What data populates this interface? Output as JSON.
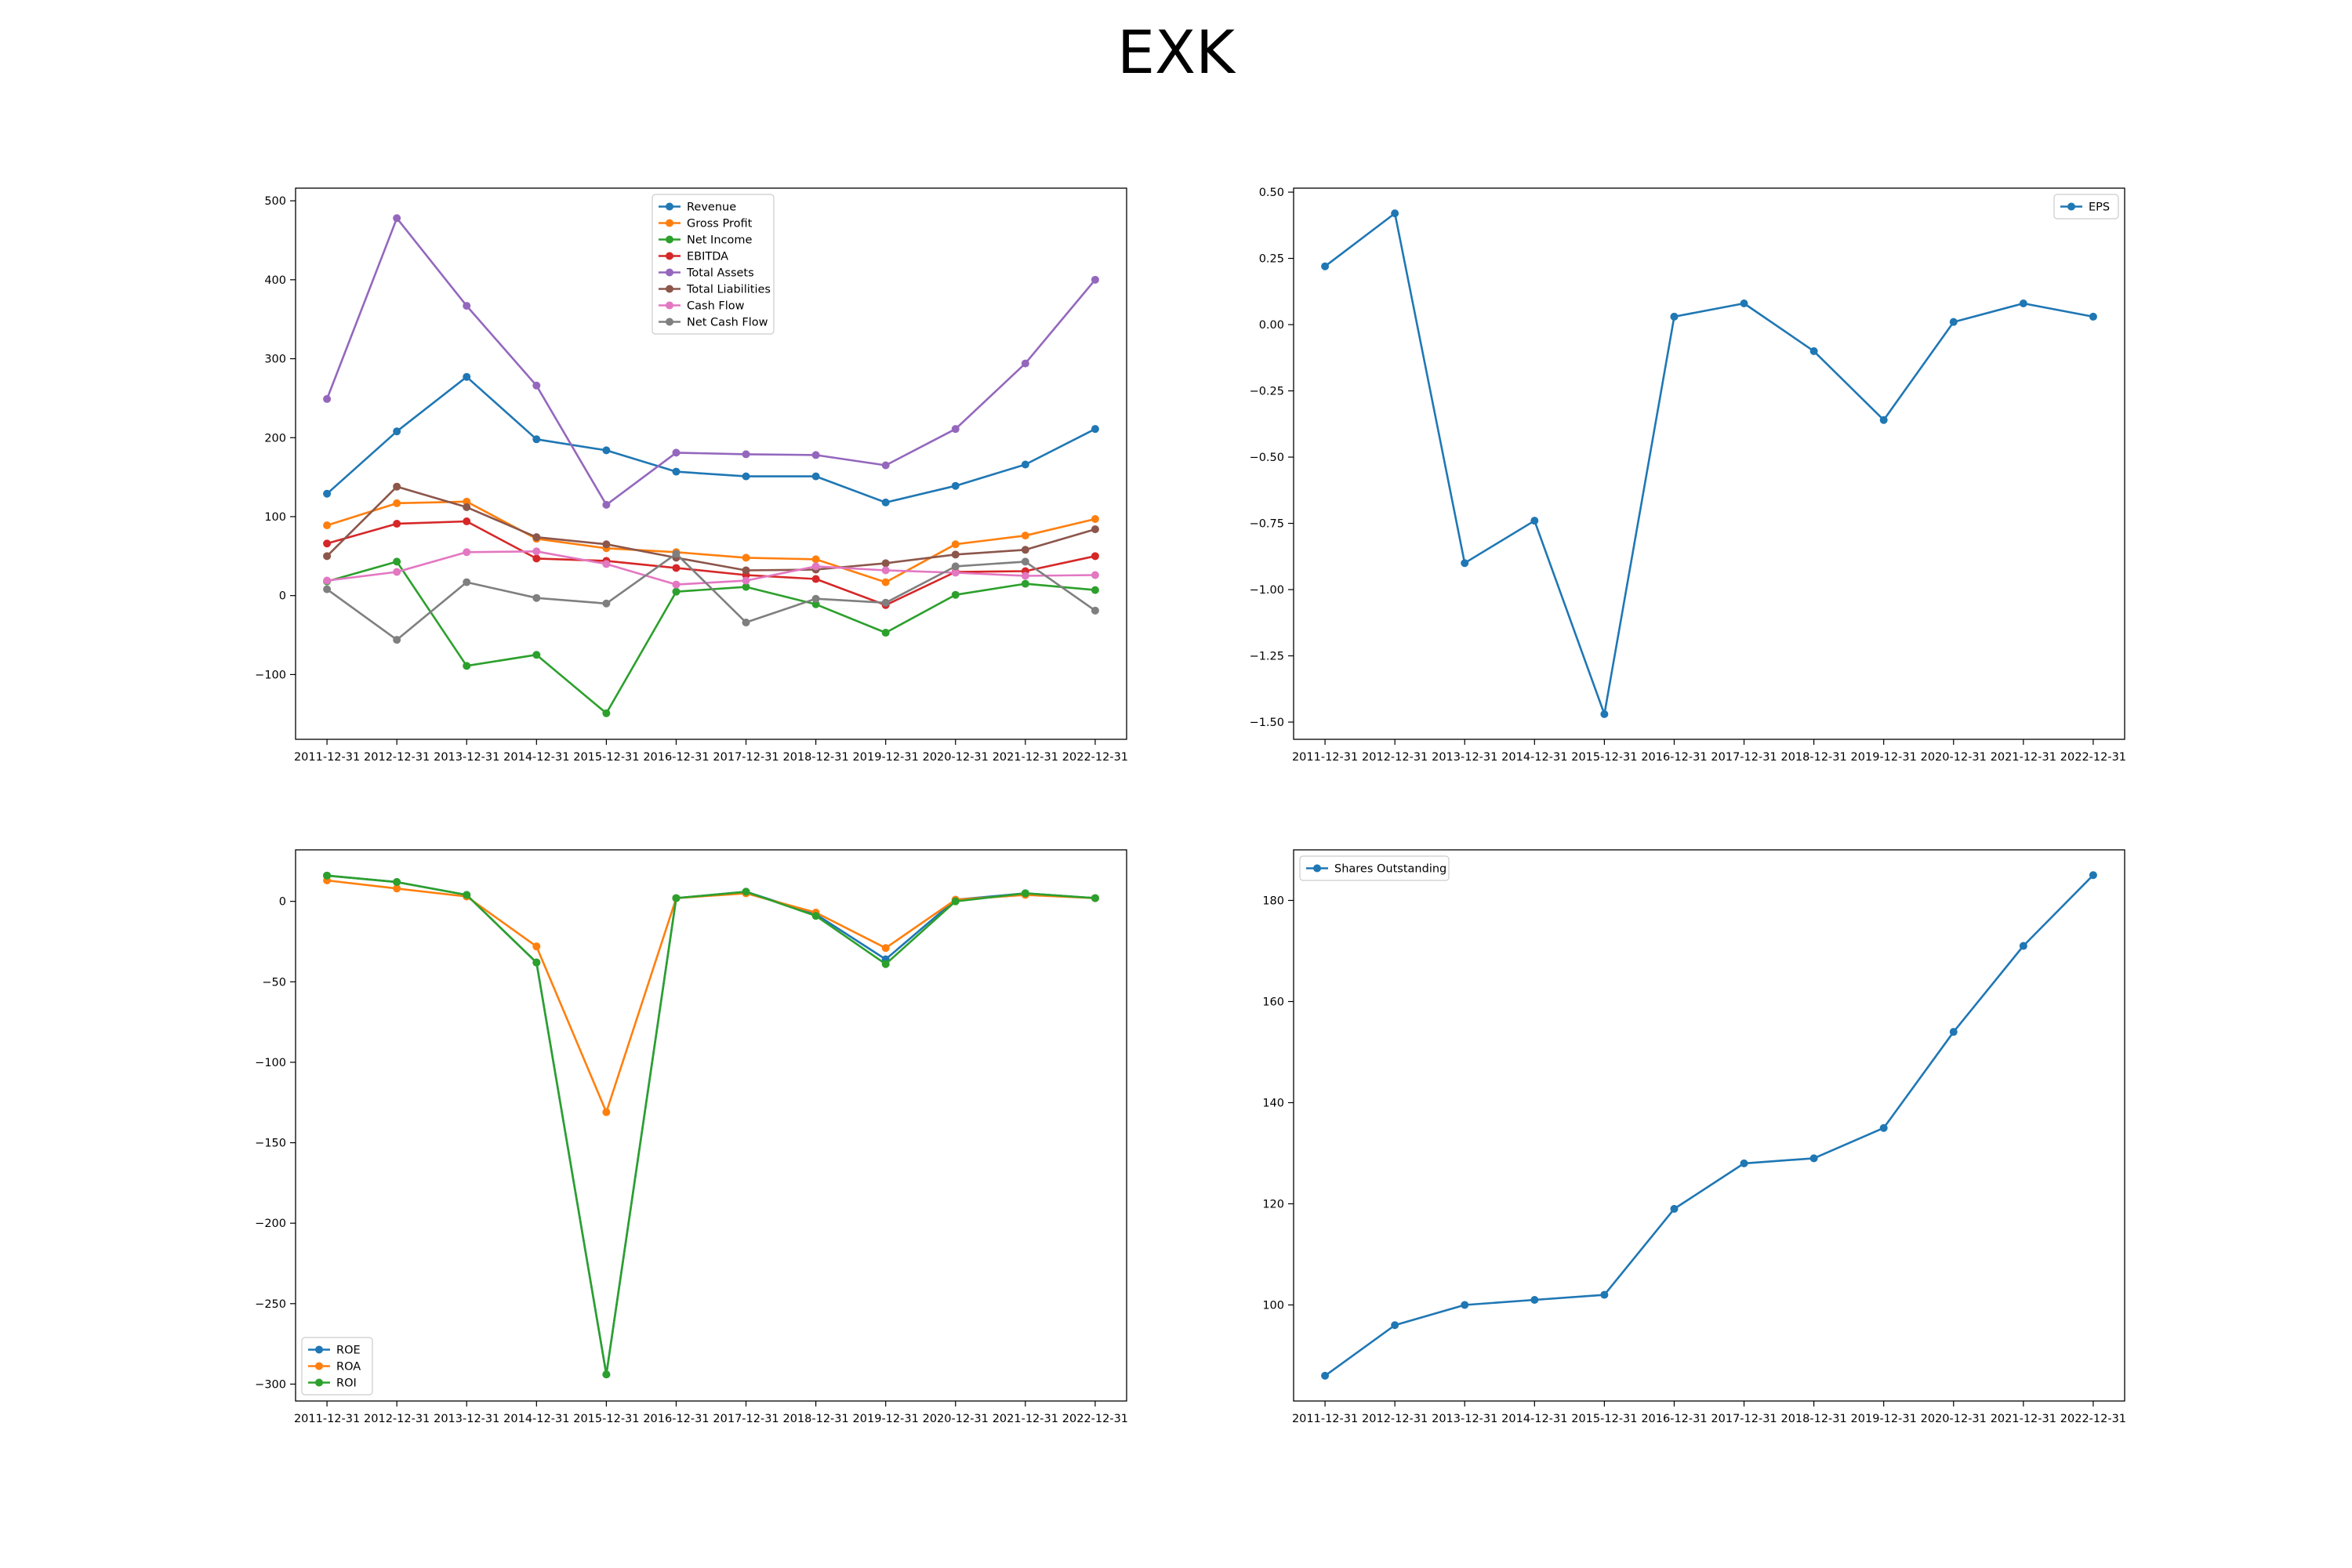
{
  "figure": {
    "title": "EXK"
  },
  "chart_data": [
    {
      "type": "line",
      "title": "",
      "xlabel": "",
      "ylabel": "",
      "categories": [
        "2011-12-31",
        "2012-12-31",
        "2013-12-31",
        "2014-12-31",
        "2015-12-31",
        "2016-12-31",
        "2017-12-31",
        "2018-12-31",
        "2019-12-31",
        "2020-12-31",
        "2021-12-31",
        "2022-12-31"
      ],
      "ylim": [
        -182,
        516
      ],
      "yticks": [
        -100,
        0,
        100,
        200,
        300,
        400,
        500
      ],
      "legend_position": "upper-center",
      "grid": false,
      "series": [
        {
          "name": "Revenue",
          "color": "#1f77b4",
          "values": [
            129,
            208,
            277,
            198,
            184,
            157,
            151,
            151,
            118,
            139,
            166,
            211
          ]
        },
        {
          "name": "Gross Profit",
          "color": "#ff7f0e",
          "values": [
            89,
            117,
            119,
            72,
            60,
            55,
            48,
            46,
            17,
            65,
            76,
            97
          ]
        },
        {
          "name": "Net Income",
          "color": "#2ca02c",
          "values": [
            18,
            43,
            -89,
            -75,
            -149,
            5,
            11,
            -11,
            -47,
            1,
            15,
            7
          ]
        },
        {
          "name": "EBITDA",
          "color": "#d62728",
          "values": [
            66,
            91,
            94,
            47,
            44,
            35,
            26,
            21,
            -12,
            30,
            31,
            50
          ]
        },
        {
          "name": "Total Assets",
          "color": "#9467bd",
          "values": [
            249,
            478,
            367,
            266,
            115,
            181,
            179,
            178,
            165,
            211,
            294,
            400
          ]
        },
        {
          "name": "Total Liabilities",
          "color": "#8c564b",
          "values": [
            50,
            138,
            112,
            74,
            65,
            48,
            32,
            33,
            41,
            52,
            58,
            84
          ]
        },
        {
          "name": "Cash Flow",
          "color": "#e377c2",
          "values": [
            19,
            30,
            55,
            56,
            40,
            14,
            19,
            37,
            32,
            29,
            25,
            26
          ]
        },
        {
          "name": "Net Cash Flow",
          "color": "#7f7f7f",
          "values": [
            8,
            -56,
            17,
            -3,
            -10,
            53,
            -34,
            -4,
            -9,
            37,
            43,
            -19
          ]
        }
      ]
    },
    {
      "type": "line",
      "title": "",
      "xlabel": "",
      "ylabel": "",
      "categories": [
        "2011-12-31",
        "2012-12-31",
        "2013-12-31",
        "2014-12-31",
        "2015-12-31",
        "2016-12-31",
        "2017-12-31",
        "2018-12-31",
        "2019-12-31",
        "2020-12-31",
        "2021-12-31",
        "2022-12-31"
      ],
      "ylim": [
        -1.565,
        0.515
      ],
      "yticks": [
        -1.5,
        -1.25,
        -1.0,
        -0.75,
        -0.5,
        -0.25,
        0.0,
        0.25,
        0.5
      ],
      "ytick_labels": [
        "−1.50",
        "−1.25",
        "−1.00",
        "−0.75",
        "−0.50",
        "−0.25",
        "0.00",
        "0.25",
        "0.50"
      ],
      "legend_position": "upper-right",
      "grid": false,
      "series": [
        {
          "name": "EPS",
          "color": "#1f77b4",
          "values": [
            0.22,
            0.42,
            -0.9,
            -0.74,
            -1.47,
            0.03,
            0.08,
            -0.1,
            -0.36,
            0.01,
            0.08,
            0.03
          ]
        }
      ]
    },
    {
      "type": "line",
      "title": "",
      "xlabel": "",
      "ylabel": "",
      "categories": [
        "2011-12-31",
        "2012-12-31",
        "2013-12-31",
        "2014-12-31",
        "2015-12-31",
        "2016-12-31",
        "2017-12-31",
        "2018-12-31",
        "2019-12-31",
        "2020-12-31",
        "2021-12-31",
        "2022-12-31"
      ],
      "ylim": [
        -310.5,
        32
      ],
      "yticks": [
        -300,
        -250,
        -200,
        -150,
        -100,
        -50,
        0
      ],
      "legend_position": "lower-left",
      "grid": false,
      "series": [
        {
          "name": "ROE",
          "color": "#1f77b4",
          "values": [
            16,
            12,
            4,
            -38,
            -294,
            2,
            6,
            -8,
            -36,
            1,
            5,
            2
          ]
        },
        {
          "name": "ROA",
          "color": "#ff7f0e",
          "values": [
            13,
            8,
            3,
            -28,
            -131,
            2,
            5,
            -7,
            -29,
            1,
            4,
            2
          ]
        },
        {
          "name": "ROI",
          "color": "#2ca02c",
          "values": [
            16,
            12,
            4,
            -38,
            -294,
            2,
            6,
            -9,
            -39,
            0,
            5,
            2
          ]
        }
      ]
    },
    {
      "type": "line",
      "title": "",
      "xlabel": "",
      "ylabel": "",
      "categories": [
        "2011-12-31",
        "2012-12-31",
        "2013-12-31",
        "2014-12-31",
        "2015-12-31",
        "2016-12-31",
        "2017-12-31",
        "2018-12-31",
        "2019-12-31",
        "2020-12-31",
        "2021-12-31",
        "2022-12-31"
      ],
      "ylim": [
        81,
        190
      ],
      "yticks": [
        100,
        120,
        140,
        160,
        180
      ],
      "legend_position": "upper-left",
      "grid": false,
      "series": [
        {
          "name": "Shares Outstanding",
          "color": "#1f77b4",
          "values": [
            86,
            96,
            100,
            101,
            102,
            119,
            128,
            129,
            135,
            154,
            171,
            185
          ]
        }
      ]
    }
  ]
}
